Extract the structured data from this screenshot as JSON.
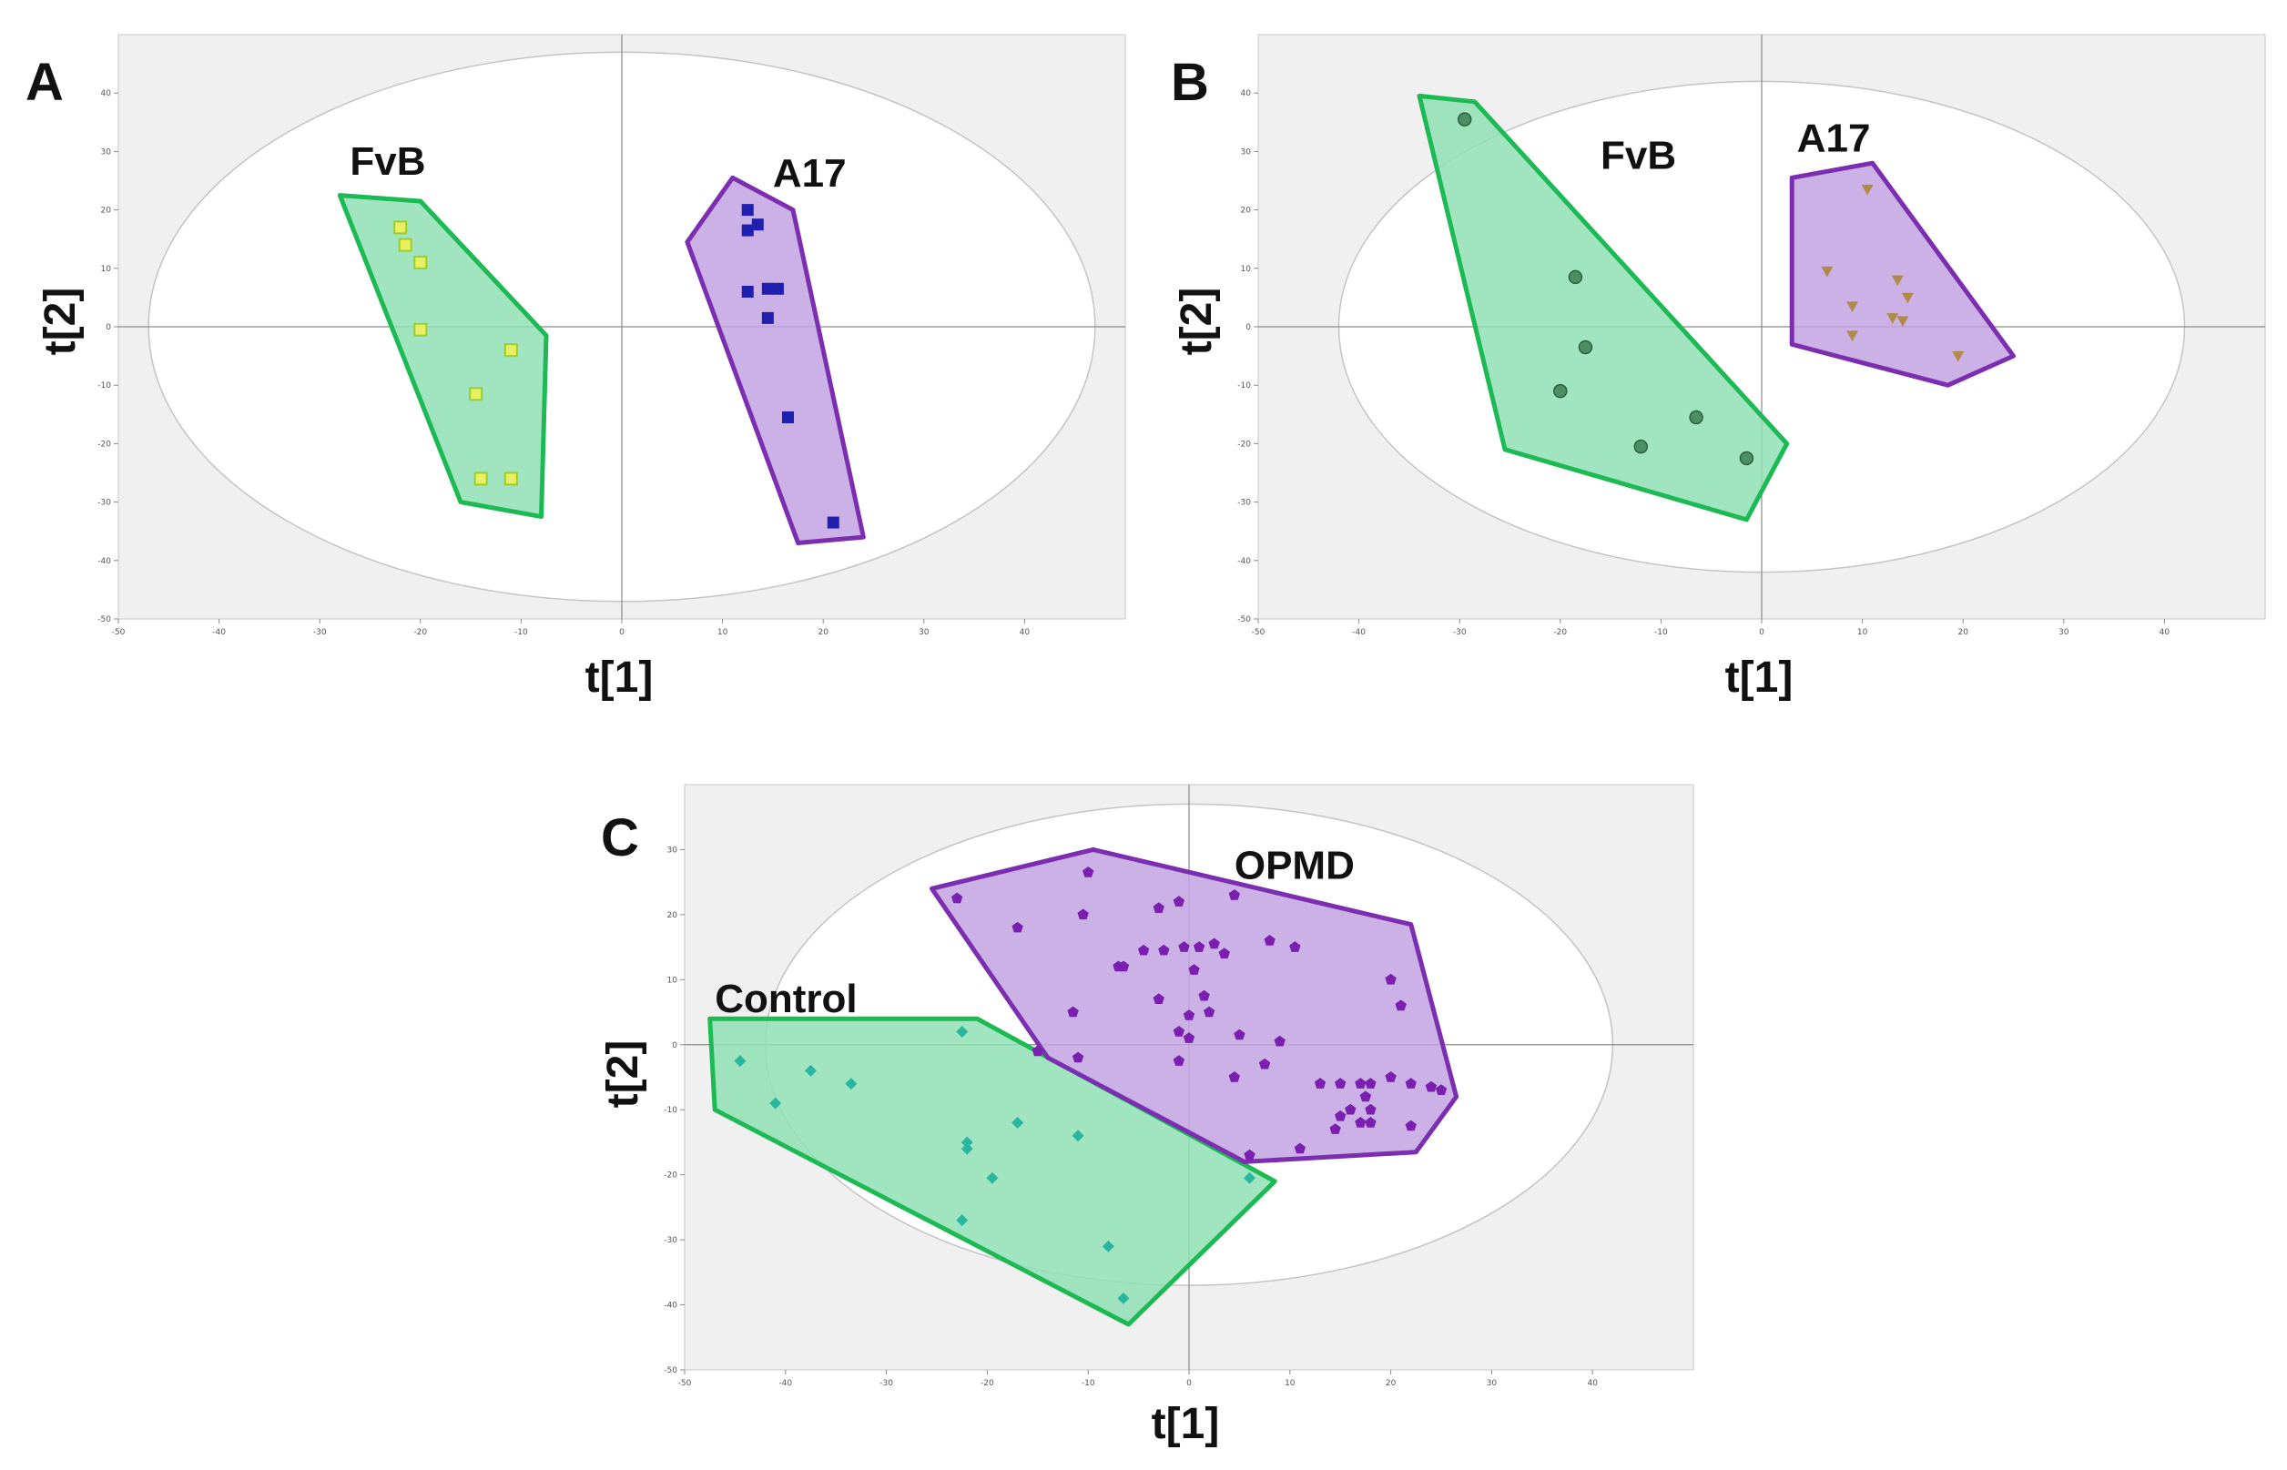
{
  "chart_data": [
    {
      "type": "scatter",
      "panel": "A",
      "xlabel": "t[1]",
      "ylabel": "t[2]",
      "xlim": [
        -50,
        50
      ],
      "ylim": [
        -50,
        50
      ],
      "xticks": [
        "-50",
        "-40",
        "-30",
        "-20",
        "-10",
        "0",
        "10",
        "20",
        "30",
        "40"
      ],
      "yticks": [
        "40",
        "30",
        "20",
        "10",
        "0",
        "-10",
        "-20",
        "-30",
        "-40",
        "-50"
      ],
      "ellipse": {
        "cx": 0,
        "cy": 0,
        "rx": 47,
        "ry": 47
      },
      "series": [
        {
          "name": "FvB",
          "color": "#1db954",
          "fill": "#8fe0b4",
          "marker": "square-open",
          "marker_color": "#9acd32",
          "label_pos": [
            -27,
            26
          ],
          "hull": [
            [
              -28,
              22.5
            ],
            [
              -20,
              21.5
            ],
            [
              -7.5,
              -1.5
            ],
            [
              -8,
              -32.5
            ],
            [
              -16,
              -30
            ]
          ],
          "points": [
            [
              -22,
              17
            ],
            [
              -21.5,
              14
            ],
            [
              -20,
              11
            ],
            [
              -20,
              -0.5
            ],
            [
              -14.5,
              -11.5
            ],
            [
              -11,
              -4
            ],
            [
              -14,
              -26
            ],
            [
              -11,
              -26
            ]
          ]
        },
        {
          "name": "A17",
          "color": "#7b2fb0",
          "fill": "#c2a3e0",
          "marker": "square",
          "marker_color": "#2020b0",
          "label_pos": [
            15,
            24
          ],
          "hull": [
            [
              6.5,
              14.5
            ],
            [
              11,
              25.5
            ],
            [
              17,
              20
            ],
            [
              24,
              -36
            ],
            [
              17.5,
              -37
            ]
          ],
          "points": [
            [
              12.5,
              20
            ],
            [
              12.5,
              16.5
            ],
            [
              13.5,
              17.5
            ],
            [
              12.5,
              6
            ],
            [
              14.5,
              6.5
            ],
            [
              15.5,
              6.5
            ],
            [
              14.5,
              1.5
            ],
            [
              16.5,
              -15.5
            ],
            [
              21,
              -33.5
            ]
          ]
        }
      ]
    },
    {
      "type": "scatter",
      "panel": "B",
      "xlabel": "t[1]",
      "ylabel": "t[2]",
      "xlim": [
        -50,
        50
      ],
      "ylim": [
        -50,
        50
      ],
      "xticks": [
        "-50",
        "-40",
        "-30",
        "-20",
        "-10",
        "0",
        "10",
        "20",
        "30",
        "40"
      ],
      "yticks": [
        "40",
        "30",
        "20",
        "10",
        "0",
        "-10",
        "-20",
        "-30",
        "-40",
        "-50"
      ],
      "ellipse": {
        "cx": 0,
        "cy": 0,
        "rx": 42,
        "ry": 42
      },
      "series": [
        {
          "name": "FvB",
          "color": "#1db954",
          "fill": "#8fe0b4",
          "marker": "circle",
          "marker_color": "#4c8f63",
          "label_pos": [
            -16,
            27
          ],
          "hull": [
            [
              -34,
              39.5
            ],
            [
              -28.5,
              38.5
            ],
            [
              2.5,
              -20
            ],
            [
              -1.5,
              -33
            ],
            [
              -25.5,
              -21
            ]
          ],
          "points": [
            [
              -29.5,
              35.5
            ],
            [
              -18.5,
              8.5
            ],
            [
              -17.5,
              -3.5
            ],
            [
              -20,
              -11
            ],
            [
              -12,
              -20.5
            ],
            [
              -6.5,
              -15.5
            ],
            [
              -1.5,
              -22.5
            ]
          ]
        },
        {
          "name": "A17",
          "color": "#7b2fb0",
          "fill": "#c2a3e0",
          "marker": "triangle-down",
          "marker_color": "#b08a4a",
          "label_pos": [
            3.5,
            30
          ],
          "hull": [
            [
              3,
              25.5
            ],
            [
              11,
              28
            ],
            [
              25,
              -5
            ],
            [
              18.5,
              -10
            ],
            [
              3,
              -3
            ]
          ],
          "points": [
            [
              10.5,
              23.5
            ],
            [
              6.5,
              9.5
            ],
            [
              13.5,
              8
            ],
            [
              14.5,
              5
            ],
            [
              9,
              3.5
            ],
            [
              13,
              1.5
            ],
            [
              14,
              1
            ],
            [
              9,
              -1.5
            ],
            [
              19.5,
              -5
            ]
          ]
        }
      ]
    },
    {
      "type": "scatter",
      "panel": "C",
      "xlabel": "t[1]",
      "ylabel": "t[2]",
      "xlim": [
        -50,
        50
      ],
      "ylim": [
        -50,
        40
      ],
      "xticks": [
        "-50",
        "-40",
        "-30",
        "-20",
        "-10",
        "0",
        "10",
        "20",
        "30",
        "40"
      ],
      "yticks": [
        "30",
        "20",
        "10",
        "0",
        "-10",
        "-20",
        "-30",
        "-40",
        "-50"
      ],
      "ellipse": {
        "cx": 0,
        "cy": 0,
        "rx": 42,
        "ry": 37
      },
      "series": [
        {
          "name": "Control",
          "color": "#1db954",
          "fill": "#8fe0b4",
          "marker": "diamond",
          "marker_color": "#2ab5a0",
          "label_pos": [
            -47,
            5
          ],
          "hull": [
            [
              -47.5,
              4
            ],
            [
              -21,
              4
            ],
            [
              8.5,
              -21
            ],
            [
              -6,
              -43
            ],
            [
              -47,
              -10
            ]
          ],
          "points": [
            [
              -44.5,
              -2.5
            ],
            [
              -37.5,
              -4
            ],
            [
              -33.5,
              -6
            ],
            [
              -41,
              -9
            ],
            [
              -22.5,
              2
            ],
            [
              -17,
              -12
            ],
            [
              -22,
              -15
            ],
            [
              -22,
              -16
            ],
            [
              -11,
              -14
            ],
            [
              -19.5,
              -20.5
            ],
            [
              -22.5,
              -27
            ],
            [
              -8,
              -31
            ],
            [
              -6.5,
              -39
            ],
            [
              6,
              -20.5
            ]
          ]
        },
        {
          "name": "OPMD",
          "color": "#7b2fb0",
          "fill": "#c2a3e0",
          "marker": "pentagon",
          "marker_color": "#7a1fb0",
          "label_pos": [
            4.5,
            25.5
          ],
          "hull": [
            [
              -25.5,
              24
            ],
            [
              -9.5,
              30
            ],
            [
              22,
              18.5
            ],
            [
              26.5,
              -8
            ],
            [
              22.5,
              -16.5
            ],
            [
              5.5,
              -18
            ],
            [
              -14,
              -2
            ]
          ],
          "points": [
            [
              -23,
              22.5
            ],
            [
              -10,
              26.5
            ],
            [
              -17,
              18
            ],
            [
              -10.5,
              20
            ],
            [
              -3,
              21
            ],
            [
              -1,
              22
            ],
            [
              4.5,
              23
            ],
            [
              -4.5,
              14.5
            ],
            [
              -2.5,
              14.5
            ],
            [
              -0.5,
              15
            ],
            [
              1,
              15
            ],
            [
              2.5,
              15.5
            ],
            [
              3.5,
              14
            ],
            [
              8,
              16
            ],
            [
              10.5,
              15
            ],
            [
              0.5,
              11.5
            ],
            [
              -7,
              12
            ],
            [
              -6.5,
              12
            ],
            [
              -3,
              7
            ],
            [
              1.5,
              7.5
            ],
            [
              -11.5,
              5
            ],
            [
              0,
              4.5
            ],
            [
              2,
              5
            ],
            [
              -1,
              2
            ],
            [
              0,
              1
            ],
            [
              5,
              1.5
            ],
            [
              9,
              0.5
            ],
            [
              20,
              10
            ],
            [
              21,
              6
            ],
            [
              -11,
              -2
            ],
            [
              -1,
              -2.5
            ],
            [
              7.5,
              -3
            ],
            [
              13,
              -6
            ],
            [
              15,
              -6
            ],
            [
              17,
              -6
            ],
            [
              18,
              -6
            ],
            [
              20,
              -5
            ],
            [
              22,
              -6
            ],
            [
              24,
              -6.5
            ],
            [
              25,
              -7
            ],
            [
              17.5,
              -8
            ],
            [
              16,
              -10
            ],
            [
              18,
              -10
            ],
            [
              15,
              -11
            ],
            [
              18,
              -12
            ],
            [
              17,
              -12
            ],
            [
              14.5,
              -13
            ],
            [
              22,
              -12.5
            ],
            [
              4.5,
              -5
            ],
            [
              6,
              -17
            ],
            [
              11,
              -16
            ],
            [
              -15,
              -1
            ]
          ]
        }
      ]
    }
  ]
}
